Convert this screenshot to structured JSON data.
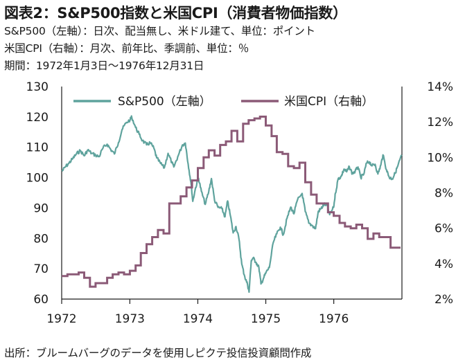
{
  "header": {
    "title": "図表2：S&P500指数と米国CPI（消費者物価指数）",
    "sub1": "S&P500（左軸）：日次、配当無し、米ドル建て、単位：ポイント",
    "sub2": "米国CPI（右軸）：月次、前年比、季調前、単位：％",
    "sub3": "期間：1972年1月3日～1976年12月31日"
  },
  "footer": {
    "source": "出所：ブルームバーグのデータを使用しピクテ投信投資顧問作成"
  },
  "colors": {
    "sp500": "#5fa39d",
    "cpi": "#8b5a77",
    "axis": "#1a1a1a"
  },
  "chart_data": {
    "type": "line",
    "x_ticks": [
      "1972",
      "1973",
      "1974",
      "1975",
      "1976"
    ],
    "xlim": [
      "1972-01-01",
      "1977-01-01"
    ],
    "y_left": {
      "ticks": [
        "130",
        "120",
        "110",
        "100",
        "90",
        "80",
        "70",
        "60"
      ],
      "ylim": [
        60,
        130
      ]
    },
    "y_right": {
      "ticks": [
        "14%",
        "12%",
        "10%",
        "8%",
        "6%",
        "4%",
        "2%"
      ],
      "ylim": [
        2,
        14
      ]
    },
    "legend_placement": "top",
    "grid": false,
    "series": [
      {
        "name": "S&P500（左軸）",
        "axis": "left",
        "points": [
          [
            "1972-01-03",
            102.1
          ],
          [
            "1972-01-20",
            103.5
          ],
          [
            "1972-02-10",
            104.8
          ],
          [
            "1972-03-01",
            106.3
          ],
          [
            "1972-03-20",
            107.8
          ],
          [
            "1972-04-10",
            108.9
          ],
          [
            "1972-05-01",
            107.2
          ],
          [
            "1972-05-20",
            109.1
          ],
          [
            "1972-06-10",
            108.0
          ],
          [
            "1972-07-01",
            107.4
          ],
          [
            "1972-07-20",
            106.9
          ],
          [
            "1972-08-10",
            109.8
          ],
          [
            "1972-09-01",
            111.0
          ],
          [
            "1972-09-20",
            109.3
          ],
          [
            "1972-10-10",
            107.8
          ],
          [
            "1972-11-01",
            111.6
          ],
          [
            "1972-11-20",
            115.8
          ],
          [
            "1972-12-10",
            117.9
          ],
          [
            "1973-01-03",
            119.1
          ],
          [
            "1973-01-11",
            120.0
          ],
          [
            "1973-02-01",
            116.5
          ],
          [
            "1973-02-20",
            114.3
          ],
          [
            "1973-03-10",
            112.2
          ],
          [
            "1973-04-01",
            110.8
          ],
          [
            "1973-04-20",
            111.5
          ],
          [
            "1973-05-10",
            109.7
          ],
          [
            "1973-05-25",
            106.5
          ],
          [
            "1973-06-15",
            104.7
          ],
          [
            "1973-07-05",
            103.2
          ],
          [
            "1973-07-25",
            108.0
          ],
          [
            "1973-08-15",
            104.9
          ],
          [
            "1973-08-25",
            103.5
          ],
          [
            "1973-09-15",
            106.8
          ],
          [
            "1973-10-10",
            110.7
          ],
          [
            "1973-10-26",
            111.4
          ],
          [
            "1973-11-10",
            104.5
          ],
          [
            "1973-11-25",
            98.5
          ],
          [
            "1973-12-05",
            92.2
          ],
          [
            "1973-12-20",
            96.7
          ],
          [
            "1974-01-05",
            99.8
          ],
          [
            "1974-01-20",
            95.5
          ],
          [
            "1974-02-10",
            91.2
          ],
          [
            "1974-03-01",
            95.5
          ],
          [
            "1974-03-15",
            99.7
          ],
          [
            "1974-04-01",
            92.5
          ],
          [
            "1974-04-20",
            90.2
          ],
          [
            "1974-05-10",
            89.8
          ],
          [
            "1974-05-27",
            87.1
          ],
          [
            "1974-06-10",
            92.3
          ],
          [
            "1974-06-25",
            87.4
          ],
          [
            "1974-07-10",
            81.8
          ],
          [
            "1974-07-25",
            83.9
          ],
          [
            "1974-08-10",
            79.8
          ],
          [
            "1974-08-25",
            71.5
          ],
          [
            "1974-09-10",
            67.4
          ],
          [
            "1974-09-25",
            64.8
          ],
          [
            "1974-10-03",
            62.3
          ],
          [
            "1974-10-15",
            72.7
          ],
          [
            "1974-10-25",
            73.5
          ],
          [
            "1974-11-10",
            72.1
          ],
          [
            "1974-11-25",
            70.4
          ],
          [
            "1974-12-06",
            65.0
          ],
          [
            "1974-12-20",
            66.9
          ],
          [
            "1975-01-02",
            68.7
          ],
          [
            "1975-01-20",
            70.4
          ],
          [
            "1975-02-10",
            78.6
          ],
          [
            "1975-03-01",
            81.5
          ],
          [
            "1975-03-20",
            83.7
          ],
          [
            "1975-04-05",
            81.2
          ],
          [
            "1975-04-25",
            86.6
          ],
          [
            "1975-05-15",
            90.3
          ],
          [
            "1975-06-01",
            88.1
          ],
          [
            "1975-06-20",
            92.6
          ],
          [
            "1975-07-15",
            94.8
          ],
          [
            "1975-08-01",
            88.8
          ],
          [
            "1975-08-20",
            85.0
          ],
          [
            "1975-09-10",
            84.1
          ],
          [
            "1975-09-25",
            83.2
          ],
          [
            "1975-10-10",
            88.9
          ],
          [
            "1975-10-25",
            89.8
          ],
          [
            "1975-11-10",
            91.2
          ],
          [
            "1975-11-25",
            91.0
          ],
          [
            "1975-12-10",
            87.8
          ],
          [
            "1975-12-31",
            90.2
          ],
          [
            "1976-01-10",
            94.9
          ],
          [
            "1976-01-25",
            99.7
          ],
          [
            "1976-02-10",
            100.4
          ],
          [
            "1976-02-25",
            102.8
          ],
          [
            "1976-03-10",
            101.9
          ],
          [
            "1976-03-25",
            103.5
          ],
          [
            "1976-04-10",
            101.3
          ],
          [
            "1976-04-25",
            102.1
          ],
          [
            "1976-05-10",
            103.5
          ],
          [
            "1976-05-25",
            100.0
          ],
          [
            "1976-06-10",
            101.1
          ],
          [
            "1976-06-25",
            104.8
          ],
          [
            "1976-07-10",
            105.2
          ],
          [
            "1976-07-25",
            103.9
          ],
          [
            "1976-08-10",
            104.4
          ],
          [
            "1976-08-25",
            101.2
          ],
          [
            "1976-09-10",
            104.2
          ],
          [
            "1976-09-21",
            107.5
          ],
          [
            "1976-10-10",
            102.6
          ],
          [
            "1976-10-25",
            100.1
          ],
          [
            "1976-11-10",
            99.6
          ],
          [
            "1976-11-25",
            101.4
          ],
          [
            "1976-12-10",
            103.9
          ],
          [
            "1976-12-31",
            107.5
          ]
        ]
      },
      {
        "name": "米国CPI（右軸）",
        "axis": "right",
        "points": [
          [
            "1972-01",
            3.3
          ],
          [
            "1972-02",
            3.4
          ],
          [
            "1972-03",
            3.4
          ],
          [
            "1972-04",
            3.5
          ],
          [
            "1972-05",
            3.2
          ],
          [
            "1972-06",
            2.7
          ],
          [
            "1972-07",
            2.9
          ],
          [
            "1972-08",
            2.9
          ],
          [
            "1972-09",
            3.2
          ],
          [
            "1972-10",
            3.4
          ],
          [
            "1972-11",
            3.5
          ],
          [
            "1972-12",
            3.4
          ],
          [
            "1973-01",
            3.6
          ],
          [
            "1973-02",
            3.9
          ],
          [
            "1973-03",
            4.6
          ],
          [
            "1973-04",
            5.1
          ],
          [
            "1973-05",
            5.5
          ],
          [
            "1973-06",
            5.9
          ],
          [
            "1973-07",
            5.7
          ],
          [
            "1973-08",
            7.4
          ],
          [
            "1973-09",
            7.4
          ],
          [
            "1973-10",
            7.8
          ],
          [
            "1973-11",
            8.3
          ],
          [
            "1973-12",
            8.7
          ],
          [
            "1974-01",
            9.4
          ],
          [
            "1974-02",
            10.0
          ],
          [
            "1974-03",
            10.4
          ],
          [
            "1974-04",
            10.1
          ],
          [
            "1974-05",
            10.7
          ],
          [
            "1974-06",
            10.9
          ],
          [
            "1974-07",
            11.5
          ],
          [
            "1974-08",
            10.9
          ],
          [
            "1974-09",
            11.9
          ],
          [
            "1974-10",
            12.1
          ],
          [
            "1974-11",
            12.2
          ],
          [
            "1974-12",
            12.3
          ],
          [
            "1975-01",
            11.8
          ],
          [
            "1975-02",
            11.2
          ],
          [
            "1975-03",
            10.3
          ],
          [
            "1975-04",
            10.2
          ],
          [
            "1975-05",
            9.5
          ],
          [
            "1975-06",
            9.4
          ],
          [
            "1975-07",
            9.7
          ],
          [
            "1975-08",
            8.6
          ],
          [
            "1975-09",
            7.9
          ],
          [
            "1975-10",
            7.4
          ],
          [
            "1975-11",
            7.4
          ],
          [
            "1975-12",
            6.9
          ],
          [
            "1976-01",
            6.7
          ],
          [
            "1976-02",
            6.3
          ],
          [
            "1976-03",
            6.1
          ],
          [
            "1976-04",
            6.0
          ],
          [
            "1976-05",
            6.2
          ],
          [
            "1976-06",
            6.0
          ],
          [
            "1976-07",
            5.4
          ],
          [
            "1976-08",
            5.7
          ],
          [
            "1976-09",
            5.5
          ],
          [
            "1976-10",
            5.5
          ],
          [
            "1976-11",
            4.9
          ],
          [
            "1976-12",
            4.9
          ]
        ]
      }
    ]
  }
}
